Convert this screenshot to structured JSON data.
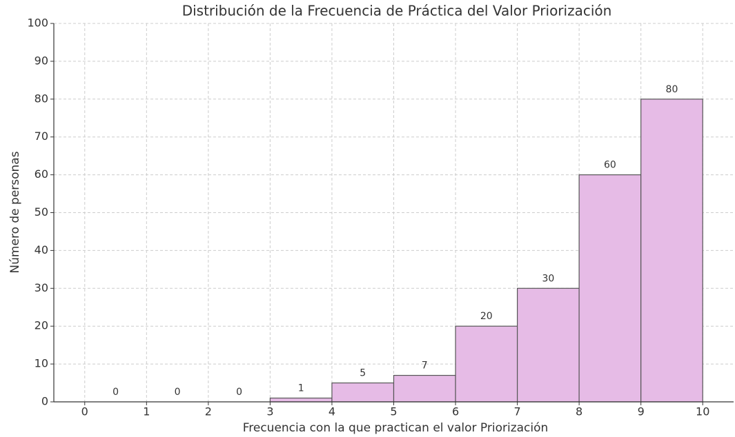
{
  "chart_data": {
    "type": "histogram",
    "title": "Distribución de la Frecuencia de Práctica del Valor Priorización",
    "xlabel": "Frecuencia con la que practican el valor Priorización",
    "ylabel": "Número de personas",
    "bins": [
      0,
      1,
      2,
      3,
      4,
      5,
      6,
      7,
      8,
      9,
      10
    ],
    "values": [
      0,
      0,
      0,
      1,
      5,
      7,
      20,
      30,
      60,
      80
    ],
    "color": "#e6bbe6",
    "edgecolor": "#555555",
    "xlim": [
      -0.5,
      10.5
    ],
    "ylim": [
      0,
      100
    ],
    "xticks": [
      0,
      1,
      2,
      3,
      4,
      5,
      6,
      7,
      8,
      9,
      10
    ],
    "yticks": [
      0,
      10,
      20,
      30,
      40,
      50,
      60,
      70,
      80,
      90,
      100
    ],
    "grid": true
  }
}
